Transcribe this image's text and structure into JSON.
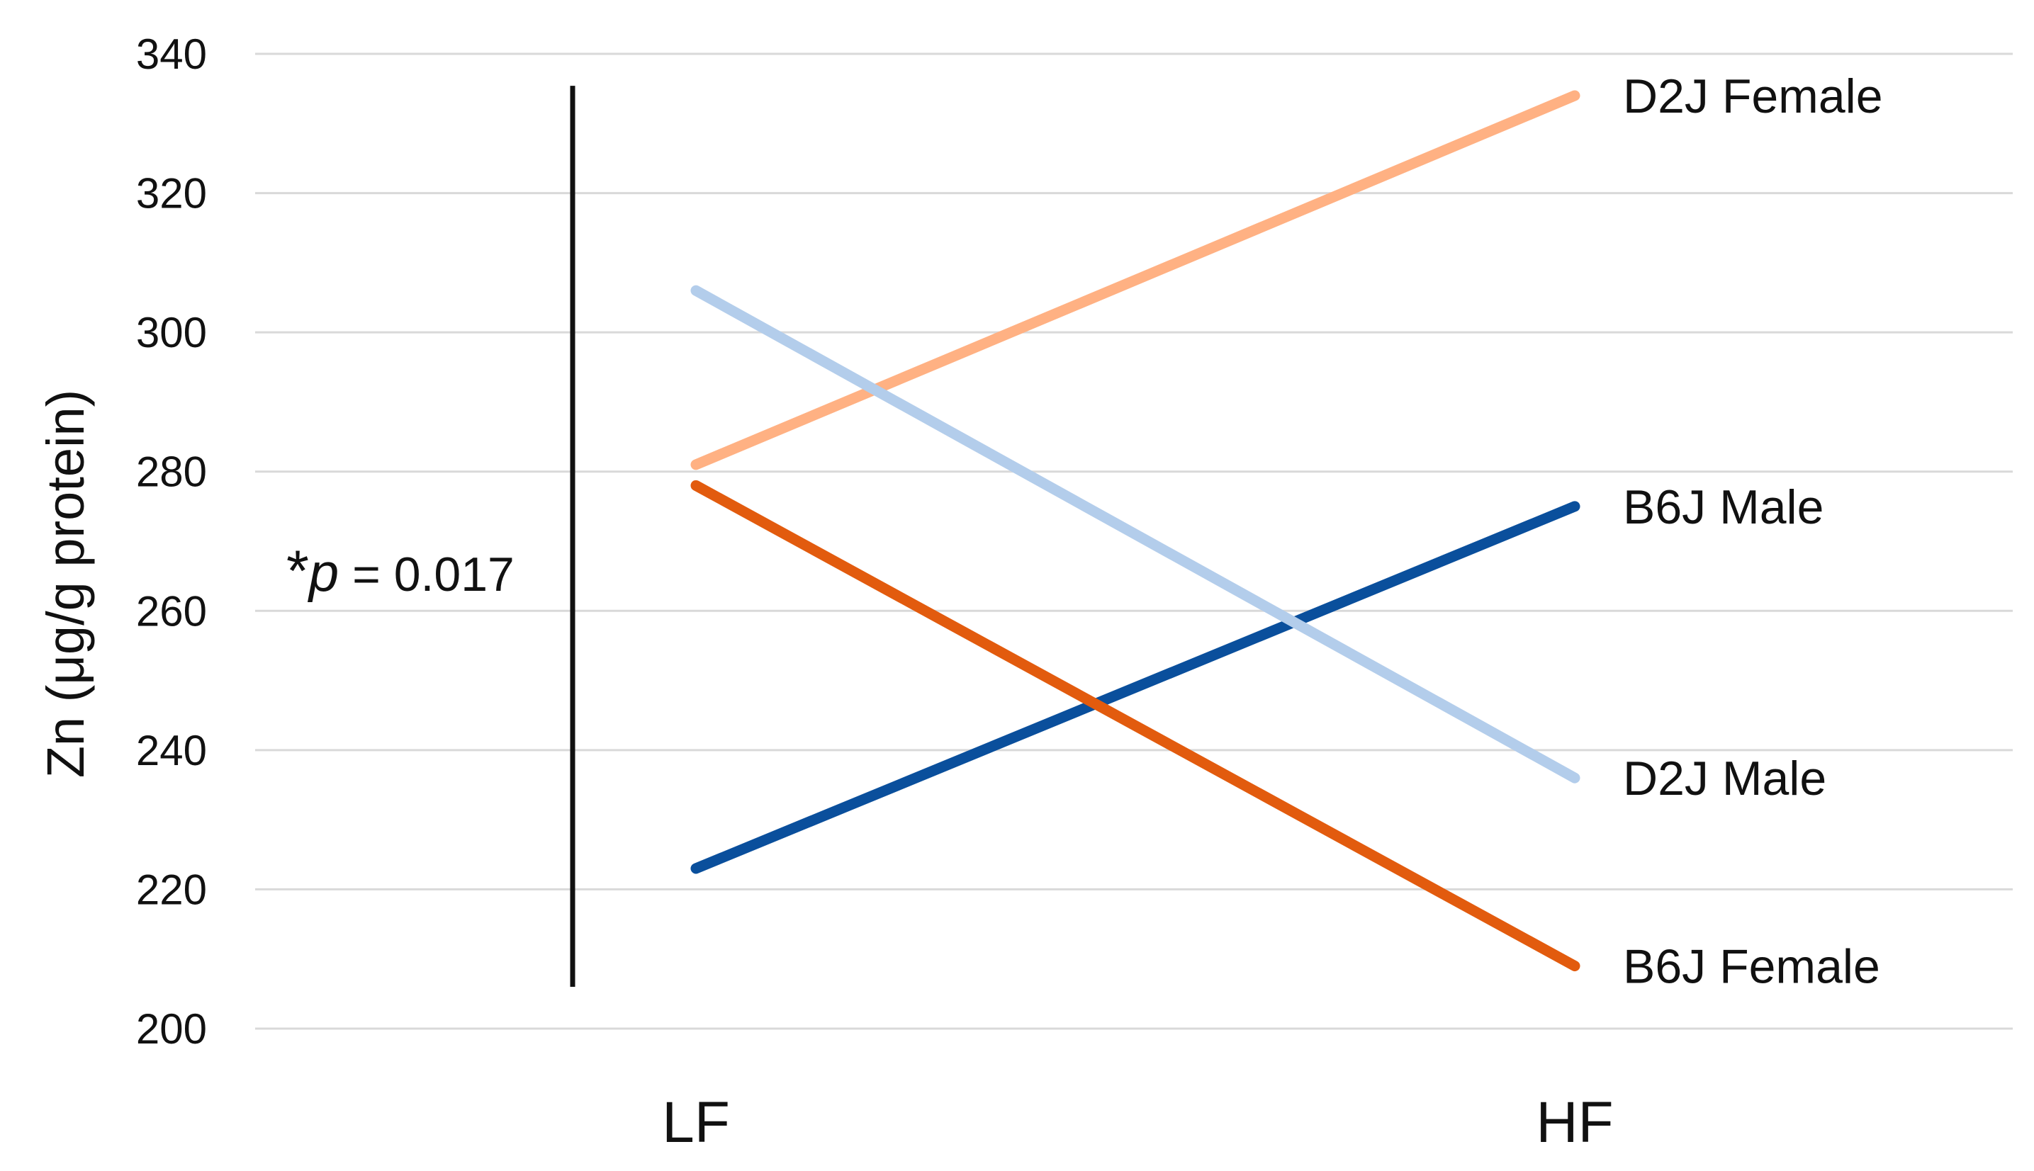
{
  "chart_data": {
    "type": "line",
    "categories": [
      "LF",
      "HF"
    ],
    "ylabel": "Zn (μg/g protein)",
    "xlabel": "",
    "ylim": [
      200,
      340
    ],
    "yticks": [
      200,
      220,
      240,
      260,
      280,
      300,
      320,
      340
    ],
    "grid": true,
    "legend": "inline-right",
    "series": [
      {
        "name": "D2J Female",
        "values": [
          281,
          334
        ],
        "color": "#FFB183"
      },
      {
        "name": "B6J Male",
        "values": [
          223,
          275
        ],
        "color": "#0A4F9C"
      },
      {
        "name": "D2J Male",
        "values": [
          306,
          236
        ],
        "color": "#B3CDEB"
      },
      {
        "name": "B6J Female",
        "values": [
          278,
          209
        ],
        "color": "#E25B0E"
      }
    ],
    "annotation": {
      "star": "*",
      "p_symbol": "p",
      "text": " = 0.017",
      "bracket_range": [
        206,
        335
      ]
    }
  }
}
